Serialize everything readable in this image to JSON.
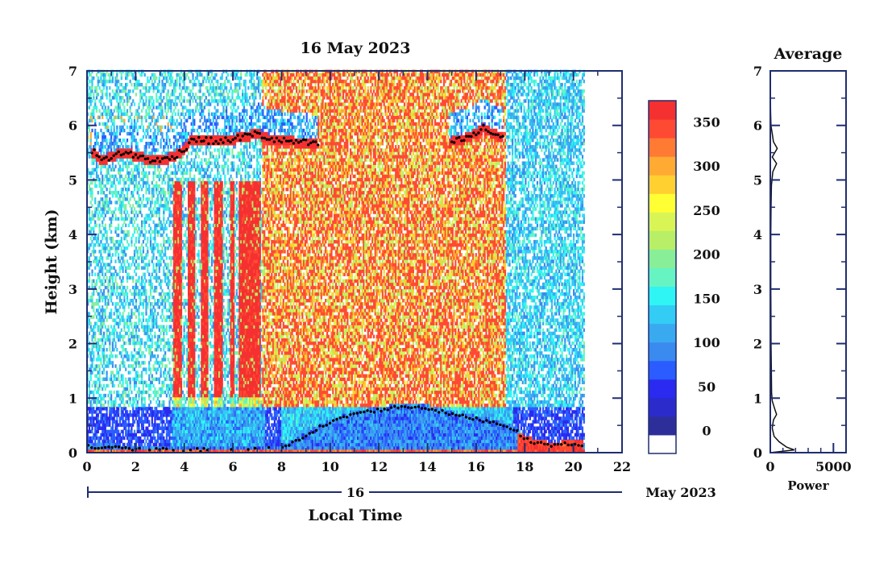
{
  "chart_data": [
    {
      "type": "heatmap",
      "title": "16 May 2023",
      "xlabel": "Local Time",
      "ylabel": "Height (km)",
      "xlim": [
        0,
        22
      ],
      "ylim": [
        0,
        7
      ],
      "x_ticks": [
        "0",
        "2",
        "4",
        "6",
        "8",
        "10",
        "12",
        "14",
        "16",
        "18",
        "20",
        "22"
      ],
      "y_ticks": [
        "0",
        "1",
        "2",
        "3",
        "4",
        "5",
        "6",
        "7"
      ],
      "data_x_range": [
        0,
        20.4
      ],
      "date_axis": {
        "day_label": "16",
        "month_label": "May 2023",
        "day_start_hour": 0
      },
      "colorbar": {
        "tick_labels": [
          "0",
          "50",
          "100",
          "150",
          "200",
          "250",
          "300",
          "350"
        ],
        "tick_values": [
          0,
          50,
          100,
          150,
          200,
          250,
          300,
          350
        ],
        "min": -25,
        "max": 375,
        "colors": [
          "#ffffff",
          "#2e2e9a",
          "#2b2bcc",
          "#2a2af0",
          "#2a5cff",
          "#3a8af0",
          "#3aaaf0",
          "#33ccf5",
          "#2ff5f5",
          "#66f5c2",
          "#88ef98",
          "#b8ef66",
          "#d8f555",
          "#ffff33",
          "#ffd030",
          "#ffaa33",
          "#ff7a33",
          "#ff4a33",
          "#f53030"
        ]
      },
      "boundary_layer_km": [
        [
          0.0,
          0.12
        ],
        [
          0.5,
          0.1
        ],
        [
          1.0,
          0.1
        ],
        [
          1.5,
          0.08
        ],
        [
          2.0,
          0.06
        ],
        [
          3.0,
          0.06
        ],
        [
          4.0,
          0.05
        ],
        [
          5.0,
          0.05
        ],
        [
          6.0,
          0.05
        ],
        [
          7.0,
          0.06
        ],
        [
          7.5,
          0.08
        ],
        [
          8.2,
          0.1
        ],
        [
          8.9,
          0.3
        ],
        [
          9.5,
          0.45
        ],
        [
          10.3,
          0.6
        ],
        [
          11.0,
          0.72
        ],
        [
          12.0,
          0.78
        ],
        [
          13.0,
          0.85
        ],
        [
          14.0,
          0.82
        ],
        [
          15.0,
          0.7
        ],
        [
          16.0,
          0.62
        ],
        [
          16.8,
          0.55
        ],
        [
          17.5,
          0.45
        ],
        [
          18.0,
          0.25
        ],
        [
          18.5,
          0.18
        ],
        [
          19.0,
          0.14
        ],
        [
          19.5,
          0.15
        ],
        [
          20.0,
          0.16
        ],
        [
          20.4,
          0.15
        ]
      ],
      "cloud_base_km": [
        [
          0.3,
          5.5
        ],
        [
          0.6,
          5.35
        ],
        [
          1.4,
          5.5
        ],
        [
          2.0,
          5.45
        ],
        [
          2.5,
          5.38
        ],
        [
          3.0,
          5.35
        ],
        [
          3.5,
          5.42
        ],
        [
          4.0,
          5.55
        ],
        [
          4.3,
          5.75
        ],
        [
          5.0,
          5.72
        ],
        [
          5.5,
          5.7
        ],
        [
          6.0,
          5.75
        ],
        [
          6.5,
          5.8
        ],
        [
          7.0,
          5.85
        ],
        [
          7.5,
          5.75
        ],
        [
          8.0,
          5.72
        ],
        [
          8.5,
          5.7
        ],
        [
          9.0,
          5.68
        ],
        [
          9.4,
          5.65
        ],
        [
          15.0,
          5.7
        ],
        [
          15.5,
          5.75
        ],
        [
          16.0,
          5.85
        ],
        [
          16.3,
          5.95
        ],
        [
          16.7,
          5.85
        ],
        [
          17.0,
          5.8
        ]
      ]
    },
    {
      "type": "line",
      "title": "Average",
      "xlabel": "Power",
      "ylabel": "",
      "xlim": [
        0,
        6000
      ],
      "ylim": [
        0,
        7
      ],
      "x_ticks": [
        "0",
        "5000"
      ],
      "y_ticks": [
        "0",
        "1",
        "2",
        "3",
        "4",
        "5",
        "6",
        "7"
      ],
      "series": [
        {
          "points": [
            [
              0,
              0.0
            ],
            [
              1900,
              0.05
            ],
            [
              1300,
              0.1
            ],
            [
              700,
              0.2
            ],
            [
              300,
              0.3
            ],
            [
              150,
              0.45
            ],
            [
              250,
              0.6
            ],
            [
              500,
              0.7
            ],
            [
              350,
              0.8
            ],
            [
              150,
              0.95
            ],
            [
              100,
              1.1
            ],
            [
              80,
              1.5
            ],
            [
              60,
              2.0
            ],
            [
              50,
              2.5
            ],
            [
              40,
              3.0
            ],
            [
              40,
              3.5
            ],
            [
              40,
              4.0
            ],
            [
              60,
              4.5
            ],
            [
              90,
              4.9
            ],
            [
              200,
              5.15
            ],
            [
              500,
              5.3
            ],
            [
              150,
              5.42
            ],
            [
              550,
              5.58
            ],
            [
              250,
              5.7
            ],
            [
              150,
              5.85
            ],
            [
              50,
              6.0
            ],
            [
              20,
              6.3
            ],
            [
              10,
              6.6
            ],
            [
              10,
              7.0
            ]
          ]
        }
      ]
    }
  ]
}
